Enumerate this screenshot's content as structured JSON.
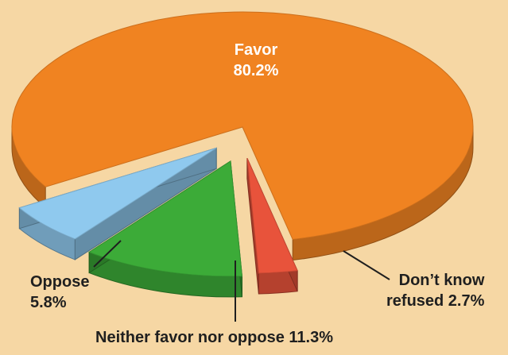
{
  "chart_data": {
    "type": "pie",
    "categories": [
      "Favor",
      "Oppose",
      "Neither favor nor oppose",
      "Don’t know refused"
    ],
    "values": [
      80.2,
      5.8,
      11.3,
      2.7
    ],
    "colors": [
      "#f08321",
      "#8fc9ee",
      "#3cab38",
      "#e8533b"
    ],
    "labels": [
      {
        "lines": [
          "Favor",
          "80.2%"
        ]
      },
      {
        "lines": [
          "Oppose",
          "5.8%"
        ]
      },
      {
        "lines": [
          "Neither favor nor oppose 11.3%"
        ]
      },
      {
        "lines": [
          "Don’t know",
          "refused 2.7%"
        ]
      }
    ],
    "legend": "none",
    "grid": false
  }
}
